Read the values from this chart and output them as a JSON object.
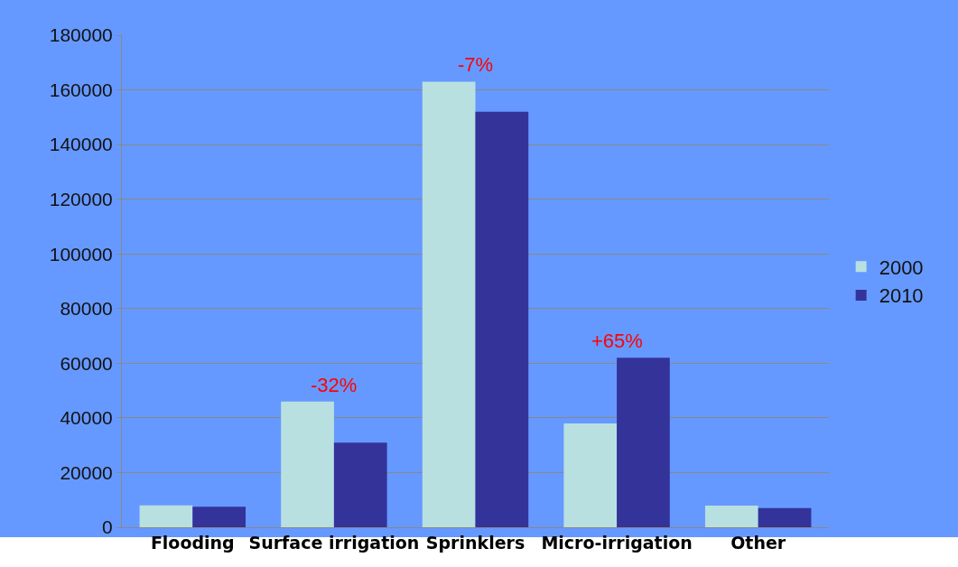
{
  "chart_data": {
    "type": "bar",
    "categories": [
      "Flooding",
      "Surface irrigation",
      "Sprinklers",
      "Micro-irrigation",
      "Other"
    ],
    "series": [
      {
        "name": "2000",
        "color": "#b8e0e0",
        "values": [
          8000,
          46000,
          163000,
          38000,
          7900
        ]
      },
      {
        "name": "2010",
        "color": "#333399",
        "values": [
          7500,
          31000,
          152000,
          62000,
          7000
        ]
      }
    ],
    "ylim": [
      0,
      180000
    ],
    "yticks": [
      0,
      20000,
      40000,
      60000,
      80000,
      100000,
      120000,
      140000,
      160000,
      180000
    ],
    "grid": "y",
    "legend": "right",
    "annotations": [
      {
        "text": "-32%",
        "x": "Surface irrigation",
        "y": 46000
      },
      {
        "text": "-7%",
        "x": "Sprinklers",
        "y": 163000
      },
      {
        "text": "+65%",
        "x": "Micro-irrigation",
        "y": 62000
      }
    ]
  }
}
